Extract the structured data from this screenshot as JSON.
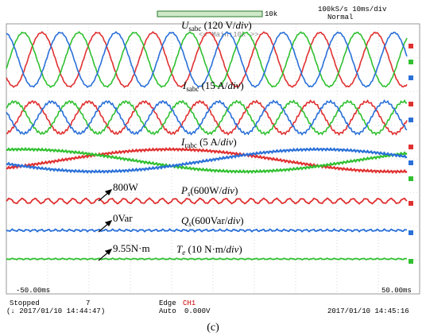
{
  "header": {
    "trigger_bar": "10k",
    "rate": "100kS/s  10ms/div",
    "mode": "Normal",
    "zoom": "<< Main:10k >>"
  },
  "signals": [
    {
      "symbol": "U",
      "subscript": "sabc",
      "text": " (120 V/",
      "unit": "div",
      "close": ")"
    },
    {
      "symbol": "I",
      "subscript": "sabc",
      "text": " (15 A/",
      "unit": "div",
      "close": ")"
    },
    {
      "symbol": "I",
      "subscript": "rabc",
      "text": " (5 A/",
      "unit": "div",
      "close": ")"
    },
    {
      "symbol": "P",
      "subscript": "s",
      "text": "(600W/",
      "unit": "div",
      "close": ")"
    },
    {
      "symbol": "Q",
      "subscript": "s",
      "text": "(600Var/",
      "unit": "div",
      "close": ")"
    },
    {
      "symbol": "T",
      "subscript": "e",
      "text": " (10 N·m/",
      "unit": "div",
      "close": ")"
    }
  ],
  "annotations": [
    "800W",
    "0Var",
    "9.55N·m"
  ],
  "time_axis": {
    "left": "-50.00ms",
    "right": "50.00ms"
  },
  "footer": {
    "state": "Stopped",
    "count": "7",
    "start_time": "(↓ 2017/01/10 14:44:47)",
    "trigger": "Edge",
    "channel": "CH1",
    "trigger_mode": "Auto",
    "level": "0.000V",
    "end_time": "2017/01/10 14:45:16"
  },
  "caption": "(c)"
}
